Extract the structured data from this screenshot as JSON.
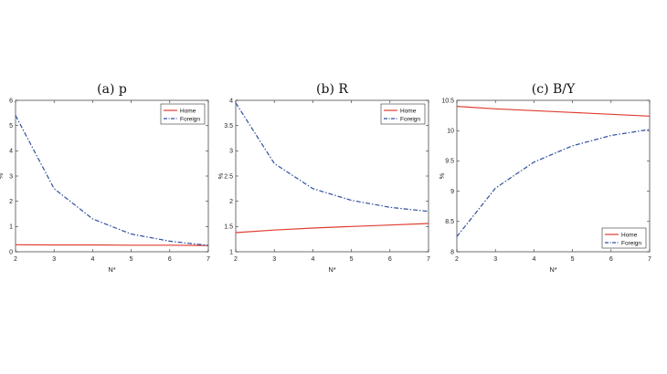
{
  "chart_data": [
    {
      "type": "line",
      "title": "(a) p",
      "xlabel": "N*",
      "ylabel": "%",
      "x": [
        2,
        3,
        4,
        5,
        6,
        7
      ],
      "xlim": [
        2,
        7
      ],
      "ylim": [
        0,
        6
      ],
      "yticks": [
        "0",
        "1",
        "2",
        "3",
        "4",
        "5",
        "6"
      ],
      "xticks": [
        "2",
        "3",
        "4",
        "5",
        "6",
        "7"
      ],
      "legend_position": "top-right",
      "grid": false,
      "series": [
        {
          "name": "Home",
          "color": "#e03c31",
          "style": "solid",
          "values": [
            0.28,
            0.27,
            0.27,
            0.26,
            0.26,
            0.25
          ]
        },
        {
          "name": "Foreign",
          "color": "#2f4fa0",
          "style": "dashdot",
          "values": [
            5.4,
            2.5,
            1.3,
            0.7,
            0.42,
            0.25
          ]
        }
      ]
    },
    {
      "type": "line",
      "title": "(b) R",
      "xlabel": "N*",
      "ylabel": "%",
      "x": [
        2,
        3,
        4,
        5,
        6,
        7
      ],
      "xlim": [
        2,
        7
      ],
      "ylim": [
        1,
        4
      ],
      "yticks": [
        "1",
        "1.5",
        "2",
        "2.5",
        "3",
        "3.5",
        "4"
      ],
      "xticks": [
        "2",
        "3",
        "4",
        "5",
        "6",
        "7"
      ],
      "legend_position": "top-right",
      "grid": false,
      "series": [
        {
          "name": "Home",
          "color": "#e03c31",
          "style": "solid",
          "values": [
            1.38,
            1.43,
            1.47,
            1.5,
            1.53,
            1.56
          ]
        },
        {
          "name": "Foreign",
          "color": "#2f4fa0",
          "style": "dashdot",
          "values": [
            3.95,
            2.75,
            2.25,
            2.02,
            1.88,
            1.8
          ]
        }
      ]
    },
    {
      "type": "line",
      "title": "(c) B/Y",
      "xlabel": "N*",
      "ylabel": "%",
      "x": [
        2,
        3,
        4,
        5,
        6,
        7
      ],
      "xlim": [
        2,
        7
      ],
      "ylim": [
        8,
        10.5
      ],
      "yticks": [
        "8",
        "8.5",
        "9",
        "9.5",
        "10",
        "10.5"
      ],
      "xticks": [
        "2",
        "3",
        "4",
        "5",
        "6",
        "7"
      ],
      "legend_position": "bottom-right",
      "grid": false,
      "series": [
        {
          "name": "Home",
          "color": "#e03c31",
          "style": "solid",
          "values": [
            10.4,
            10.36,
            10.33,
            10.3,
            10.27,
            10.24
          ]
        },
        {
          "name": "Foreign",
          "color": "#2f4fa0",
          "style": "dashdot",
          "values": [
            8.25,
            9.05,
            9.48,
            9.75,
            9.92,
            10.02
          ]
        }
      ]
    }
  ]
}
